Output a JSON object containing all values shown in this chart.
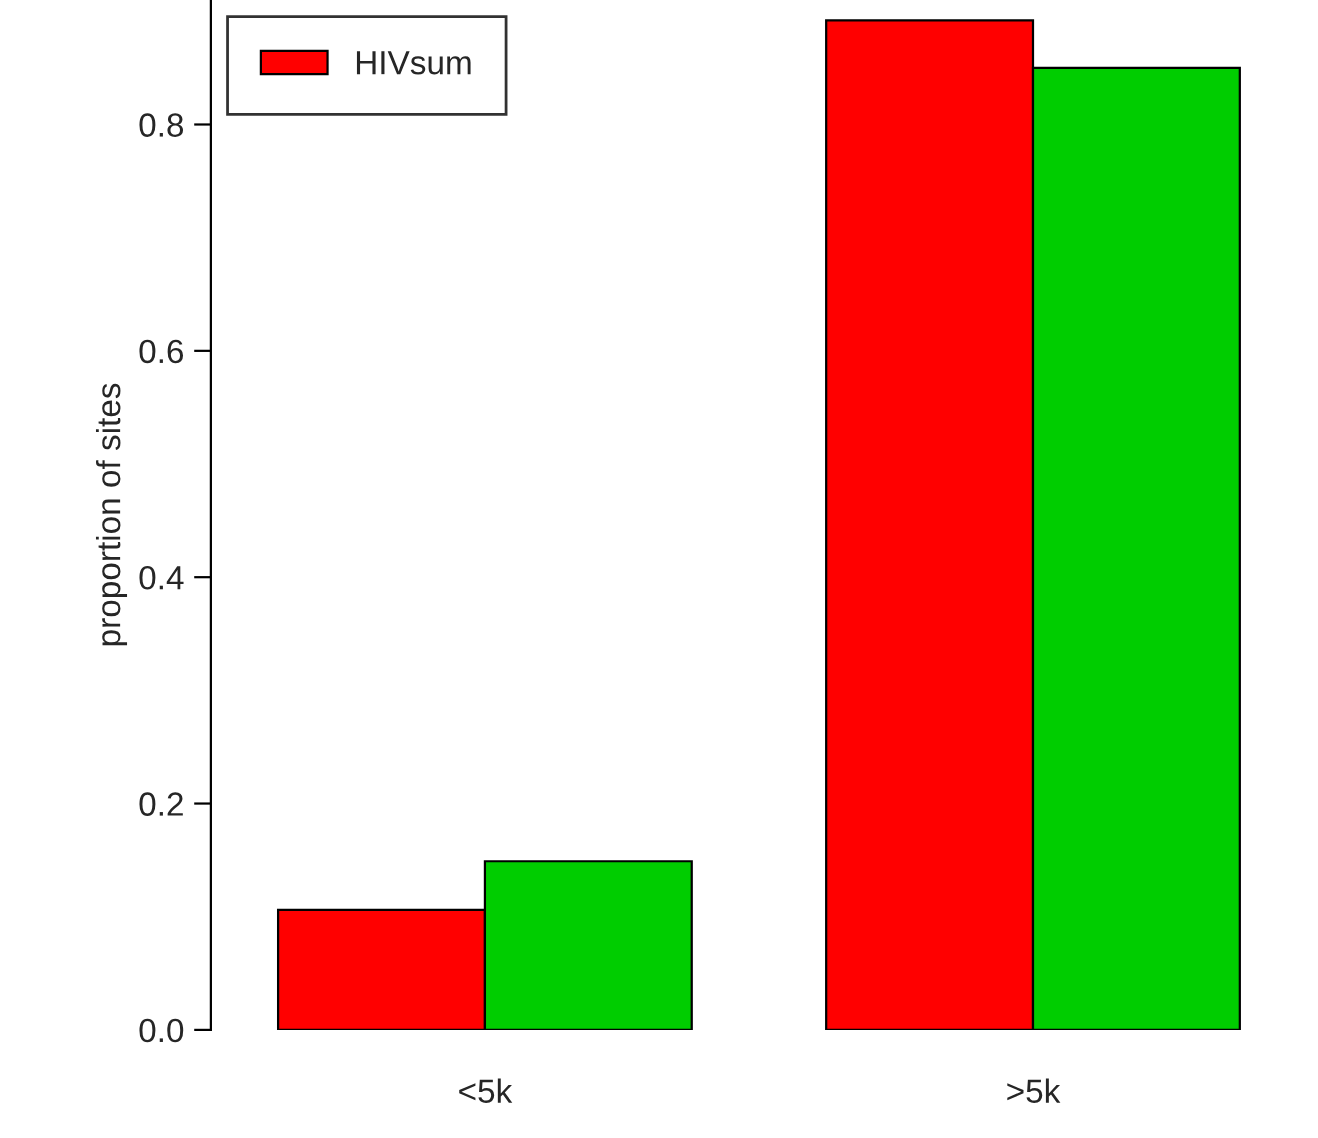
{
  "chart_data": {
    "type": "bar",
    "ylabel": "proportion of sites",
    "categories": [
      "<5k",
      ">5k"
    ],
    "series": [
      {
        "name": "HIVsum",
        "color": "#ff0000",
        "values": [
          0.106,
          0.892
        ]
      },
      {
        "color": "#00cd00",
        "values": [
          0.149,
          0.85
        ]
      }
    ],
    "ylim": [
      0,
      0.91
    ],
    "yticks": [
      {
        "value": 0,
        "label": "0.0"
      },
      0.2,
      0.4,
      0.6,
      0.8
    ],
    "grid": false,
    "legend": "top left"
  }
}
